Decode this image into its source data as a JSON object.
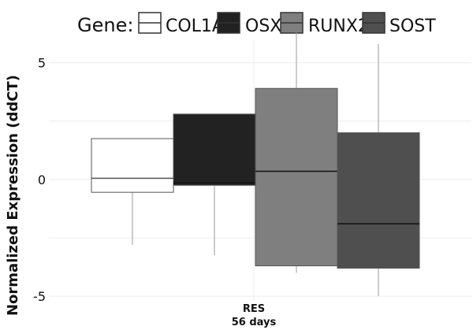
{
  "chart_data": {
    "type": "boxplot",
    "legend": {
      "title": "Gene:",
      "placement": "top"
    },
    "ylabel": "Normalized Expression (ddCT)",
    "ylim": [
      -5.2,
      6.0
    ],
    "yticks": [
      -5,
      0,
      5
    ],
    "ytick_labels": [
      "-5",
      "0",
      "5"
    ],
    "category": {
      "label_line1": "RES",
      "label_line2": "56 days"
    },
    "grid": true,
    "series": [
      {
        "name": "COL1A",
        "color": "#ffffff",
        "whisker_low": -2.8,
        "q1": -0.55,
        "median": 0.05,
        "q3": 1.75,
        "whisker_high": 1.75
      },
      {
        "name": "OSX",
        "color": "#222222",
        "whisker_low": -3.25,
        "q1": -0.25,
        "median": -0.15,
        "q3": 2.8,
        "whisker_high": 2.8
      },
      {
        "name": "RUNX2",
        "color": "#7f7f7f",
        "whisker_low": -4.0,
        "q1": -3.7,
        "median": 0.35,
        "q3": 3.9,
        "whisker_high": 6.3
      },
      {
        "name": "SOST",
        "color": "#4f4f4f",
        "whisker_low": -5.0,
        "q1": -3.8,
        "median": -1.9,
        "q3": 2.0,
        "whisker_high": 5.8
      }
    ]
  }
}
